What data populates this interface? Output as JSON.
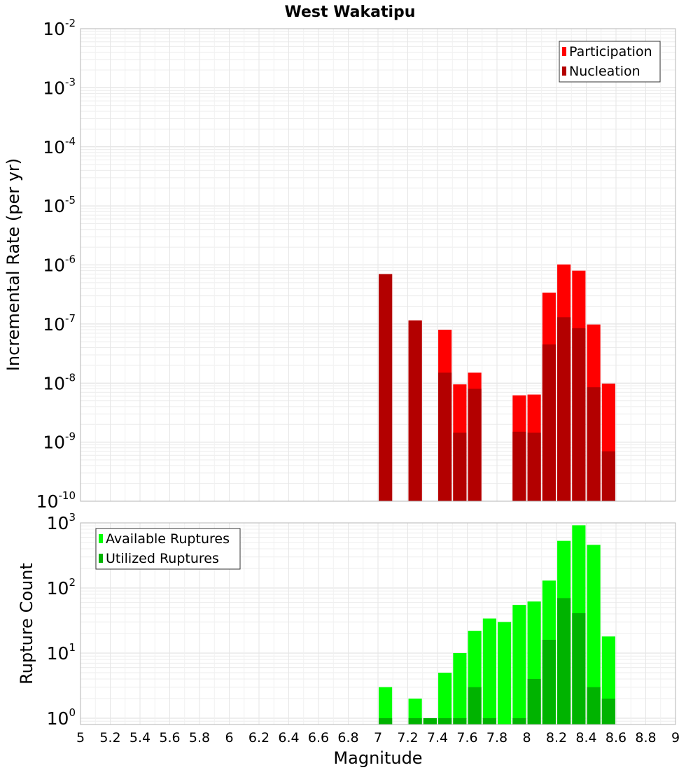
{
  "chart_data": [
    {
      "type": "bar",
      "title": "West Wakatipu",
      "ylabel": "Incremental Rate (per yr)",
      "xlabel": "",
      "xlim": [
        5,
        9
      ],
      "ylim": [
        1e-10,
        0.01
      ],
      "yscale": "log",
      "y_tick_labels": [
        {
          "base": "10",
          "exp": "-10",
          "value": 1e-10
        },
        {
          "base": "10",
          "exp": "-9",
          "value": 1e-09
        },
        {
          "base": "10",
          "exp": "-8",
          "value": 1e-08
        },
        {
          "base": "10",
          "exp": "-7",
          "value": 1e-07
        },
        {
          "base": "10",
          "exp": "-6",
          "value": 1e-06
        },
        {
          "base": "10",
          "exp": "-5",
          "value": 1e-05
        },
        {
          "base": "10",
          "exp": "-4",
          "value": 0.0001
        },
        {
          "base": "10",
          "exp": "-3",
          "value": 0.001
        },
        {
          "base": "10",
          "exp": "-2",
          "value": 0.01
        }
      ],
      "grid": true,
      "legend_position": "top-right",
      "bar_width": 0.09,
      "series": [
        {
          "name": "Participation",
          "color": "#ff0000",
          "points": [
            {
              "x": 7.05,
              "y": 7e-07
            },
            {
              "x": 7.25,
              "y": 1.15e-07
            },
            {
              "x": 7.45,
              "y": 8e-08
            },
            {
              "x": 7.55,
              "y": 9.5e-09
            },
            {
              "x": 7.65,
              "y": 1.5e-08
            },
            {
              "x": 7.95,
              "y": 6.2e-09
            },
            {
              "x": 8.05,
              "y": 6.4e-09
            },
            {
              "x": 8.15,
              "y": 3.4e-07
            },
            {
              "x": 8.25,
              "y": 1.02e-06
            },
            {
              "x": 8.35,
              "y": 8e-07
            },
            {
              "x": 8.45,
              "y": 9.8e-08
            },
            {
              "x": 8.55,
              "y": 9.8e-09
            }
          ]
        },
        {
          "name": "Nucleation",
          "color": "#b30000",
          "points": [
            {
              "x": 7.05,
              "y": 7e-07
            },
            {
              "x": 7.25,
              "y": 1.15e-07
            },
            {
              "x": 7.45,
              "y": 1.5e-08
            },
            {
              "x": 7.55,
              "y": 1.45e-09
            },
            {
              "x": 7.65,
              "y": 8e-09
            },
            {
              "x": 7.95,
              "y": 1.5e-09
            },
            {
              "x": 8.05,
              "y": 1.45e-09
            },
            {
              "x": 8.15,
              "y": 4.5e-08
            },
            {
              "x": 8.25,
              "y": 1.3e-07
            },
            {
              "x": 8.35,
              "y": 8.5e-08
            },
            {
              "x": 8.45,
              "y": 8.5e-09
            },
            {
              "x": 8.55,
              "y": 7e-10
            }
          ]
        }
      ]
    },
    {
      "type": "bar",
      "title": "",
      "ylabel": "Rupture Count",
      "xlabel": "Magnitude",
      "xlim": [
        5,
        9
      ],
      "ylim": [
        0.8,
        1000
      ],
      "yscale": "log",
      "y_tick_labels": [
        {
          "base": "10",
          "exp": "0",
          "value": 1
        },
        {
          "base": "10",
          "exp": "1",
          "value": 10
        },
        {
          "base": "10",
          "exp": "2",
          "value": 100
        },
        {
          "base": "10",
          "exp": "3",
          "value": 1000
        }
      ],
      "x_ticks": [
        "5",
        "5.2",
        "5.4",
        "5.6",
        "5.8",
        "6",
        "6.2",
        "6.4",
        "6.6",
        "6.8",
        "7",
        "7.2",
        "7.4",
        "7.6",
        "7.8",
        "8",
        "8.2",
        "8.4",
        "8.6",
        "8.8",
        "9"
      ],
      "grid": true,
      "legend_position": "top-left",
      "bar_width": 0.09,
      "series": [
        {
          "name": "Available Ruptures",
          "color": "#00ff00",
          "points": [
            {
              "x": 7.05,
              "y": 3
            },
            {
              "x": 7.25,
              "y": 2
            },
            {
              "x": 7.35,
              "y": 1
            },
            {
              "x": 7.45,
              "y": 5
            },
            {
              "x": 7.55,
              "y": 10
            },
            {
              "x": 7.65,
              "y": 22
            },
            {
              "x": 7.75,
              "y": 34
            },
            {
              "x": 7.85,
              "y": 30
            },
            {
              "x": 7.95,
              "y": 55
            },
            {
              "x": 8.05,
              "y": 62
            },
            {
              "x": 8.15,
              "y": 130
            },
            {
              "x": 8.25,
              "y": 530
            },
            {
              "x": 8.35,
              "y": 920
            },
            {
              "x": 8.45,
              "y": 460
            },
            {
              "x": 8.55,
              "y": 18
            }
          ]
        },
        {
          "name": "Utilized Ruptures",
          "color": "#00b300",
          "points": [
            {
              "x": 7.05,
              "y": 1
            },
            {
              "x": 7.25,
              "y": 1
            },
            {
              "x": 7.35,
              "y": 1
            },
            {
              "x": 7.45,
              "y": 1
            },
            {
              "x": 7.55,
              "y": 1
            },
            {
              "x": 7.65,
              "y": 3
            },
            {
              "x": 7.75,
              "y": 1
            },
            {
              "x": 7.95,
              "y": 1
            },
            {
              "x": 8.05,
              "y": 4
            },
            {
              "x": 8.15,
              "y": 16
            },
            {
              "x": 8.25,
              "y": 70
            },
            {
              "x": 8.35,
              "y": 41
            },
            {
              "x": 8.45,
              "y": 3
            },
            {
              "x": 8.55,
              "y": 2
            }
          ]
        }
      ]
    }
  ]
}
